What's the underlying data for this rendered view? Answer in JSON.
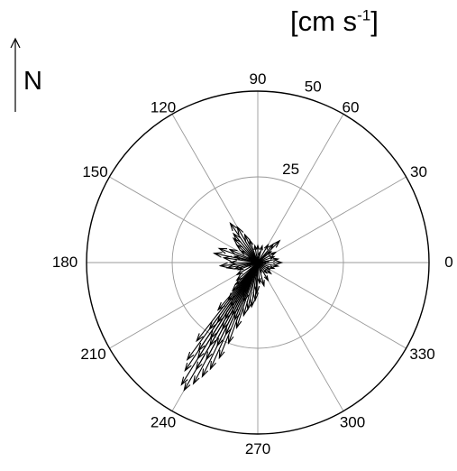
{
  "chart_data": {
    "type": "polar",
    "unit_label": {
      "text": "[cm s",
      "exponent": "-1",
      "suffix": "]"
    },
    "north_label": "N",
    "angle_ticks": [
      {
        "deg": 0,
        "label": "0"
      },
      {
        "deg": 30,
        "label": "30"
      },
      {
        "deg": 60,
        "label": "60"
      },
      {
        "deg": 90,
        "label": "90"
      },
      {
        "deg": 120,
        "label": "120"
      },
      {
        "deg": 150,
        "label": "150"
      },
      {
        "deg": 180,
        "label": "180"
      },
      {
        "deg": 210,
        "label": "210"
      },
      {
        "deg": 240,
        "label": "240"
      },
      {
        "deg": 270,
        "label": "270"
      },
      {
        "deg": 300,
        "label": "300"
      },
      {
        "deg": 330,
        "label": "330"
      }
    ],
    "radial_ticks": [
      {
        "value": 25,
        "label": "25"
      },
      {
        "value": 50,
        "label": "50"
      }
    ],
    "rmax": 50,
    "series": [
      {
        "style": "compass-arrows",
        "vectors": [
          {
            "angle": 240,
            "magnitude": 43
          },
          {
            "angle": 238,
            "magnitude": 42
          },
          {
            "angle": 242,
            "magnitude": 40
          },
          {
            "angle": 236,
            "magnitude": 38
          },
          {
            "angle": 244,
            "magnitude": 37
          },
          {
            "angle": 240,
            "magnitude": 36
          },
          {
            "angle": 234,
            "magnitude": 35
          },
          {
            "angle": 246,
            "magnitude": 34
          },
          {
            "angle": 238,
            "magnitude": 33
          },
          {
            "angle": 242,
            "magnitude": 32
          },
          {
            "angle": 236,
            "magnitude": 31
          },
          {
            "angle": 248,
            "magnitude": 30
          },
          {
            "angle": 232,
            "magnitude": 29
          },
          {
            "angle": 240,
            "magnitude": 28
          },
          {
            "angle": 244,
            "magnitude": 27
          },
          {
            "angle": 238,
            "magnitude": 26
          },
          {
            "angle": 250,
            "magnitude": 25
          },
          {
            "angle": 234,
            "magnitude": 24
          },
          {
            "angle": 246,
            "magnitude": 23
          },
          {
            "angle": 242,
            "magnitude": 22
          },
          {
            "angle": 236,
            "magnitude": 21
          },
          {
            "angle": 252,
            "magnitude": 20
          },
          {
            "angle": 240,
            "magnitude": 19
          },
          {
            "angle": 230,
            "magnitude": 18
          },
          {
            "angle": 248,
            "magnitude": 18
          },
          {
            "angle": 244,
            "magnitude": 17
          },
          {
            "angle": 255,
            "magnitude": 16
          },
          {
            "angle": 238,
            "magnitude": 15
          },
          {
            "angle": 258,
            "magnitude": 14
          },
          {
            "angle": 232,
            "magnitude": 14
          },
          {
            "angle": 262,
            "magnitude": 13
          },
          {
            "angle": 250,
            "magnitude": 12
          },
          {
            "angle": 266,
            "magnitude": 11
          },
          {
            "angle": 228,
            "magnitude": 11
          },
          {
            "angle": 245,
            "magnitude": 10
          },
          {
            "angle": 268,
            "magnitude": 9
          },
          {
            "angle": 225,
            "magnitude": 9
          },
          {
            "angle": 240,
            "magnitude": 8
          },
          {
            "angle": 125,
            "magnitude": 14
          },
          {
            "angle": 120,
            "magnitude": 12
          },
          {
            "angle": 130,
            "magnitude": 11
          },
          {
            "angle": 135,
            "magnitude": 10
          },
          {
            "angle": 115,
            "magnitude": 9
          },
          {
            "angle": 140,
            "magnitude": 8
          },
          {
            "angle": 110,
            "magnitude": 7
          },
          {
            "angle": 145,
            "magnitude": 6
          },
          {
            "angle": 168,
            "magnitude": 13
          },
          {
            "angle": 160,
            "magnitude": 12
          },
          {
            "angle": 172,
            "magnitude": 10
          },
          {
            "angle": 155,
            "magnitude": 9
          },
          {
            "angle": 165,
            "magnitude": 7
          },
          {
            "angle": 185,
            "magnitude": 11
          },
          {
            "angle": 190,
            "magnitude": 9
          },
          {
            "angle": 195,
            "magnitude": 7
          },
          {
            "angle": 200,
            "magnitude": 6
          },
          {
            "angle": 180,
            "magnitude": 8
          },
          {
            "angle": 10,
            "magnitude": 6
          },
          {
            "angle": 0,
            "magnitude": 7
          },
          {
            "angle": 350,
            "magnitude": 6
          },
          {
            "angle": 20,
            "magnitude": 5
          },
          {
            "angle": 30,
            "magnitude": 6
          },
          {
            "angle": 340,
            "magnitude": 5
          },
          {
            "angle": 45,
            "magnitude": 9
          },
          {
            "angle": 50,
            "magnitude": 7
          },
          {
            "angle": 40,
            "magnitude": 5
          },
          {
            "angle": 60,
            "magnitude": 6
          },
          {
            "angle": 75,
            "magnitude": 5
          },
          {
            "angle": 90,
            "magnitude": 5
          },
          {
            "angle": 100,
            "magnitude": 5
          },
          {
            "angle": 320,
            "magnitude": 5
          },
          {
            "angle": 300,
            "magnitude": 6
          },
          {
            "angle": 285,
            "magnitude": 7
          },
          {
            "angle": 275,
            "magnitude": 6
          },
          {
            "angle": 310,
            "magnitude": 4
          },
          {
            "angle": 330,
            "magnitude": 4
          },
          {
            "angle": 210,
            "magnitude": 7
          },
          {
            "angle": 220,
            "magnitude": 8
          },
          {
            "angle": 5,
            "magnitude": 3
          },
          {
            "angle": 80,
            "magnitude": 3
          },
          {
            "angle": 150,
            "magnitude": 3
          },
          {
            "angle": 200,
            "magnitude": 3
          },
          {
            "angle": 260,
            "magnitude": 3
          },
          {
            "angle": 290,
            "magnitude": 3
          },
          {
            "angle": 355,
            "magnitude": 2
          }
        ]
      }
    ]
  }
}
